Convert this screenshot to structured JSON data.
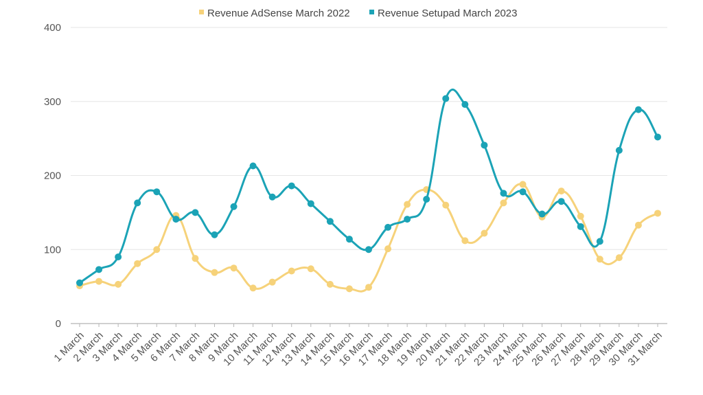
{
  "chart_data": {
    "type": "line",
    "title": "",
    "xlabel": "",
    "ylabel": "",
    "ylim": [
      0,
      400
    ],
    "yticks": [
      0,
      100,
      200,
      300,
      400
    ],
    "grid": true,
    "legend_position": "top-center",
    "categories": [
      "1 March",
      "2 March",
      "3 March",
      "4 March",
      "5 March",
      "6 March",
      "7 March",
      "8 March",
      "9 March",
      "10 March",
      "11 March",
      "12 March",
      "13 March",
      "14 March",
      "15 March",
      "16 March",
      "17 March",
      "18 March",
      "19 March",
      "20 March",
      "21 March",
      "22 March",
      "23 March",
      "24 March",
      "25 March",
      "26 March",
      "27 March",
      "28 March",
      "29 March",
      "30 March",
      "31 March"
    ],
    "series": [
      {
        "name": "Revenue AdSense March 2022",
        "color": "#f6d27a",
        "values": [
          51,
          57,
          53,
          81,
          100,
          146,
          88,
          69,
          75,
          48,
          56,
          71,
          74,
          53,
          47,
          49,
          101,
          161,
          181,
          160,
          112,
          122,
          163,
          188,
          144,
          179,
          145,
          87,
          89,
          133,
          149
        ]
      },
      {
        "name": "Revenue Setupad March 2023",
        "color": "#1ba3b6",
        "values": [
          55,
          73,
          90,
          163,
          178,
          141,
          150,
          120,
          158,
          213,
          171,
          186,
          162,
          138,
          114,
          100,
          130,
          141,
          168,
          304,
          296,
          241,
          176,
          178,
          148,
          165,
          131,
          111,
          234,
          289,
          252
        ]
      }
    ]
  }
}
